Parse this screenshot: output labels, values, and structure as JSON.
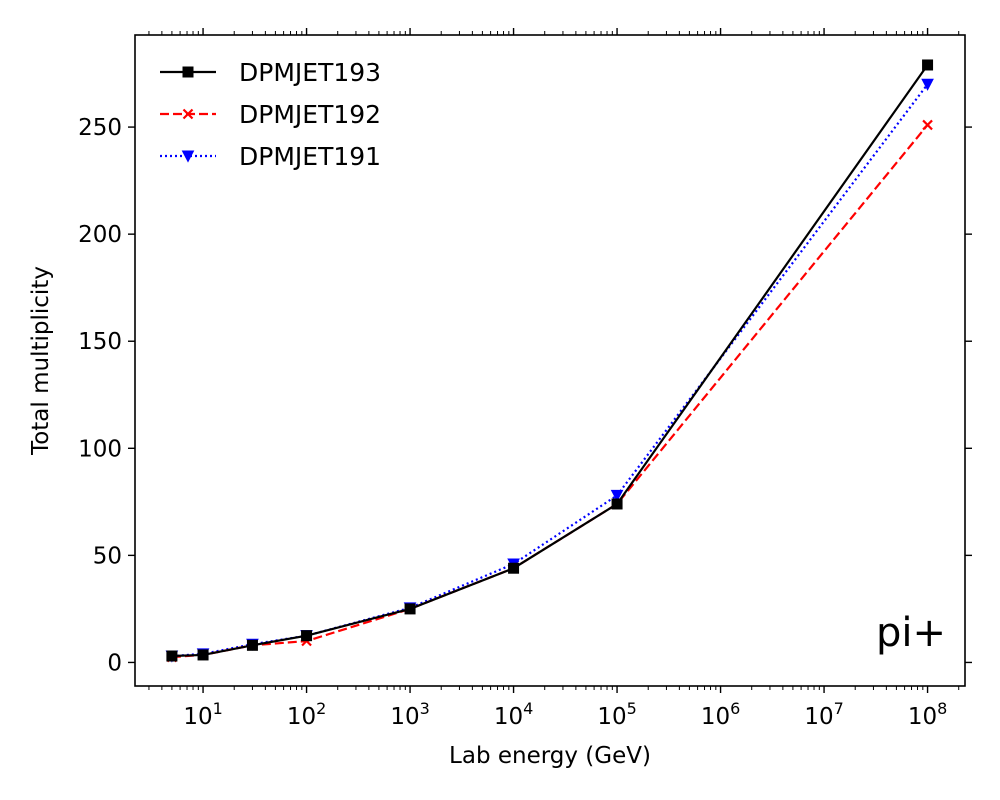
{
  "chart_data": {
    "type": "line",
    "xlabel": "Lab energy (GeV)",
    "ylabel": "Total multiplicity",
    "xscale": "log",
    "xlim": [
      2.2,
      230000000
    ],
    "ylim": [
      -11,
      293
    ],
    "x_ticks": [
      {
        "value": 10,
        "base": "10",
        "exp": "1"
      },
      {
        "value": 100,
        "base": "10",
        "exp": "2"
      },
      {
        "value": 1000,
        "base": "10",
        "exp": "3"
      },
      {
        "value": 10000,
        "base": "10",
        "exp": "4"
      },
      {
        "value": 100000,
        "base": "10",
        "exp": "5"
      },
      {
        "value": 1000000,
        "base": "10",
        "exp": "6"
      },
      {
        "value": 10000000,
        "base": "10",
        "exp": "7"
      },
      {
        "value": 100000000,
        "base": "10",
        "exp": "8"
      }
    ],
    "y_ticks": [
      0,
      50,
      100,
      150,
      200,
      250
    ],
    "x": [
      5,
      10,
      30,
      100,
      1000,
      10000,
      100000,
      100000000
    ],
    "series": [
      {
        "name": "DPMJET193",
        "color": "#000000",
        "dash": "solid",
        "marker": "square",
        "values": [
          3,
          3.5,
          8,
          12.5,
          25,
          44,
          74,
          279
        ]
      },
      {
        "name": "DPMJET192",
        "color": "#ff0000",
        "dash": "dashed",
        "marker": "x",
        "values": [
          2.5,
          3.5,
          8,
          10,
          25,
          44,
          74,
          251
        ]
      },
      {
        "name": "DPMJET191",
        "color": "#0000ff",
        "dash": "dotted",
        "marker": "triangle-down",
        "values": [
          3,
          4,
          8.5,
          12.5,
          25.5,
          46,
          78,
          270
        ]
      }
    ],
    "legend_position": "top-left",
    "annotation": "pi+",
    "grid": false
  }
}
